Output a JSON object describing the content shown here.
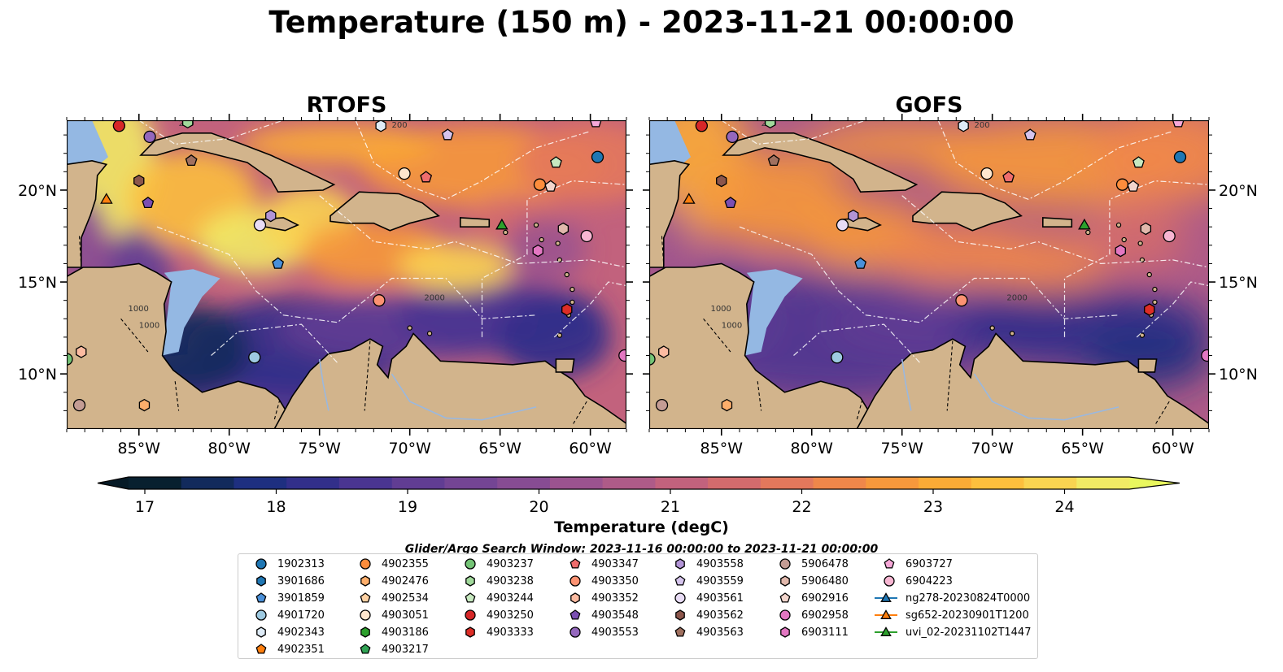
{
  "title": "Temperature (150 m) - 2023-11-21 00:00:00",
  "panels": [
    {
      "id": "rtofs",
      "title": "RTOFS"
    },
    {
      "id": "gofs",
      "title": "GOFS"
    }
  ],
  "map": {
    "lon_range": [
      -89.0,
      -58.0
    ],
    "lat_range": [
      7.0,
      23.8
    ],
    "x_ticks": [
      "85°W",
      "80°W",
      "75°W",
      "70°W",
      "65°W",
      "60°W"
    ],
    "x_tick_values": [
      -85,
      -80,
      -75,
      -70,
      -65,
      -60
    ],
    "y_ticks": [
      "20°N",
      "15°N",
      "10°N"
    ],
    "y_tick_values": [
      20,
      15,
      10
    ],
    "land_color": "#d2b48c",
    "shelf_color": "#94b8e3",
    "contour_labels": [
      "1000",
      "1000",
      "2000",
      "200",
      "200"
    ]
  },
  "colorbar": {
    "label": "Temperature (degC)",
    "ticks": [
      "17",
      "18",
      "19",
      "20",
      "21",
      "22",
      "23",
      "24"
    ],
    "range": [
      17,
      25
    ],
    "extend": "both",
    "colors": [
      "#08202f",
      "#122a5c",
      "#1e2f80",
      "#322f8a",
      "#4a3591",
      "#613d93",
      "#744594",
      "#874c93",
      "#9b538f",
      "#ae5b88",
      "#c2627d",
      "#d36b6d",
      "#e3785c",
      "#ef874a",
      "#f6983c",
      "#fbab36",
      "#fcbf3d",
      "#f9d451",
      "#f1ea65"
    ],
    "under_color": "#061a26",
    "over_color": "#e9f75e"
  },
  "search_window": "Glider/Argo Search Window: 2023-11-16 00:00:00 to 2023-11-21 00:00:00",
  "legend": [
    {
      "label": "1902313",
      "marker": "circle",
      "color": "#1f77b4"
    },
    {
      "label": "3901686",
      "marker": "hexagon",
      "color": "#1f77b4"
    },
    {
      "label": "3901859",
      "marker": "pentagon",
      "color": "#4a90d9"
    },
    {
      "label": "4901720",
      "marker": "circle",
      "color": "#9ecae1"
    },
    {
      "label": "4902343",
      "marker": "hexagon",
      "color": "#deebf7"
    },
    {
      "label": "4902351",
      "marker": "pentagon",
      "color": "#ff7f0e"
    },
    {
      "label": "4902355",
      "marker": "circle",
      "color": "#fd8d3c"
    },
    {
      "label": "4902476",
      "marker": "hexagon",
      "color": "#fdae6b"
    },
    {
      "label": "4902534",
      "marker": "pentagon",
      "color": "#fdd0a2"
    },
    {
      "label": "4903051",
      "marker": "circle",
      "color": "#fee6ce"
    },
    {
      "label": "4903186",
      "marker": "hexagon",
      "color": "#2ca02c"
    },
    {
      "label": "4903217",
      "marker": "pentagon",
      "color": "#31a354"
    },
    {
      "label": "4903237",
      "marker": "circle",
      "color": "#74c476"
    },
    {
      "label": "4903238",
      "marker": "hexagon",
      "color": "#a1d99b"
    },
    {
      "label": "4903244",
      "marker": "pentagon",
      "color": "#c7e9c0"
    },
    {
      "label": "4903250",
      "marker": "circle",
      "color": "#d62728"
    },
    {
      "label": "4903333",
      "marker": "hexagon",
      "color": "#de2d26"
    },
    {
      "label": "4903347",
      "marker": "pentagon",
      "color": "#ef6d6d"
    },
    {
      "label": "4903350",
      "marker": "circle",
      "color": "#fc9272"
    },
    {
      "label": "4903352",
      "marker": "hexagon",
      "color": "#fcbba1"
    },
    {
      "label": "4903548",
      "marker": "pentagon",
      "color": "#7b4fb2"
    },
    {
      "label": "4903553",
      "marker": "circle",
      "color": "#9467bd"
    },
    {
      "label": "4903558",
      "marker": "hexagon",
      "color": "#b294d6"
    },
    {
      "label": "4903559",
      "marker": "pentagon",
      "color": "#d5c4ec"
    },
    {
      "label": "4903561",
      "marker": "circle",
      "color": "#e8dcf5"
    },
    {
      "label": "4903562",
      "marker": "hexagon",
      "color": "#8c564b"
    },
    {
      "label": "4903563",
      "marker": "pentagon",
      "color": "#a0705f"
    },
    {
      "label": "5906478",
      "marker": "circle",
      "color": "#c49c94"
    },
    {
      "label": "5906480",
      "marker": "hexagon",
      "color": "#e1b8ac"
    },
    {
      "label": "6902916",
      "marker": "pentagon",
      "color": "#f2d5cc"
    },
    {
      "label": "6902958",
      "marker": "circle",
      "color": "#e377c2"
    },
    {
      "label": "6903111",
      "marker": "hexagon",
      "color": "#e377c2"
    },
    {
      "label": "6903727",
      "marker": "pentagon",
      "color": "#f7a8d8"
    },
    {
      "label": "6904223",
      "marker": "circle",
      "color": "#f7b6d2"
    },
    {
      "label": "ng278-20230824T0000",
      "marker": "triangle-line",
      "color": "#1f77b4"
    },
    {
      "label": "sg652-20230901T1200",
      "marker": "triangle-line",
      "color": "#ff7f0e"
    },
    {
      "label": "uvi_02-20231102T1447",
      "marker": "triangle-line",
      "color": "#2ca02c"
    }
  ],
  "float_positions": [
    {
      "id": "4903250",
      "lon": -86.1,
      "lat": 23.5
    },
    {
      "id": "4903553",
      "lon": -84.4,
      "lat": 22.9
    },
    {
      "id": "4903238",
      "lon": -82.3,
      "lat": 23.7
    },
    {
      "id": "4902343",
      "lon": -71.6,
      "lat": 23.5
    },
    {
      "id": "4903559",
      "lon": -67.9,
      "lat": 23.0
    },
    {
      "id": "6903727",
      "lon": -59.7,
      "lat": 23.7
    },
    {
      "id": "4903562",
      "lon": -85.0,
      "lat": 20.5
    },
    {
      "id": "4903563",
      "lon": -82.1,
      "lat": 21.6
    },
    {
      "id": "sg652-20230901T1200",
      "lon": -86.8,
      "lat": 19.5
    },
    {
      "id": "4903548",
      "lon": -84.5,
      "lat": 19.3
    },
    {
      "id": "4903051",
      "lon": -70.3,
      "lat": 20.9
    },
    {
      "id": "4903347",
      "lon": -69.1,
      "lat": 20.7
    },
    {
      "id": "1902313",
      "lon": -59.6,
      "lat": 21.8
    },
    {
      "id": "4903244",
      "lon": -61.9,
      "lat": 21.5
    },
    {
      "id": "4902355",
      "lon": -62.8,
      "lat": 20.3
    },
    {
      "id": "6902916",
      "lon": -62.2,
      "lat": 20.2
    },
    {
      "id": "4903558",
      "lon": -77.7,
      "lat": 18.6
    },
    {
      "id": "4903561",
      "lon": -78.3,
      "lat": 18.1
    },
    {
      "id": "uvi_02-20231102T1447",
      "lon": -64.9,
      "lat": 18.1
    },
    {
      "id": "5906480",
      "lon": -61.5,
      "lat": 17.9
    },
    {
      "id": "6904223",
      "lon": -60.2,
      "lat": 17.5
    },
    {
      "id": "6903111",
      "lon": -62.9,
      "lat": 16.7
    },
    {
      "id": "3901859",
      "lon": -77.3,
      "lat": 16.0
    },
    {
      "id": "4903350",
      "lon": -71.7,
      "lat": 14.0
    },
    {
      "id": "4903333",
      "lon": -61.3,
      "lat": 13.5
    },
    {
      "id": "4901720",
      "lon": -78.6,
      "lat": 10.9
    },
    {
      "id": "6902958",
      "lon": -58.1,
      "lat": 11.0
    },
    {
      "id": "4903352",
      "lon": -88.2,
      "lat": 11.2
    },
    {
      "id": "4903237",
      "lon": -89.0,
      "lat": 10.8
    },
    {
      "id": "5906478",
      "lon": -88.3,
      "lat": 8.3
    },
    {
      "id": "4902476",
      "lon": -84.7,
      "lat": 8.3
    }
  ]
}
